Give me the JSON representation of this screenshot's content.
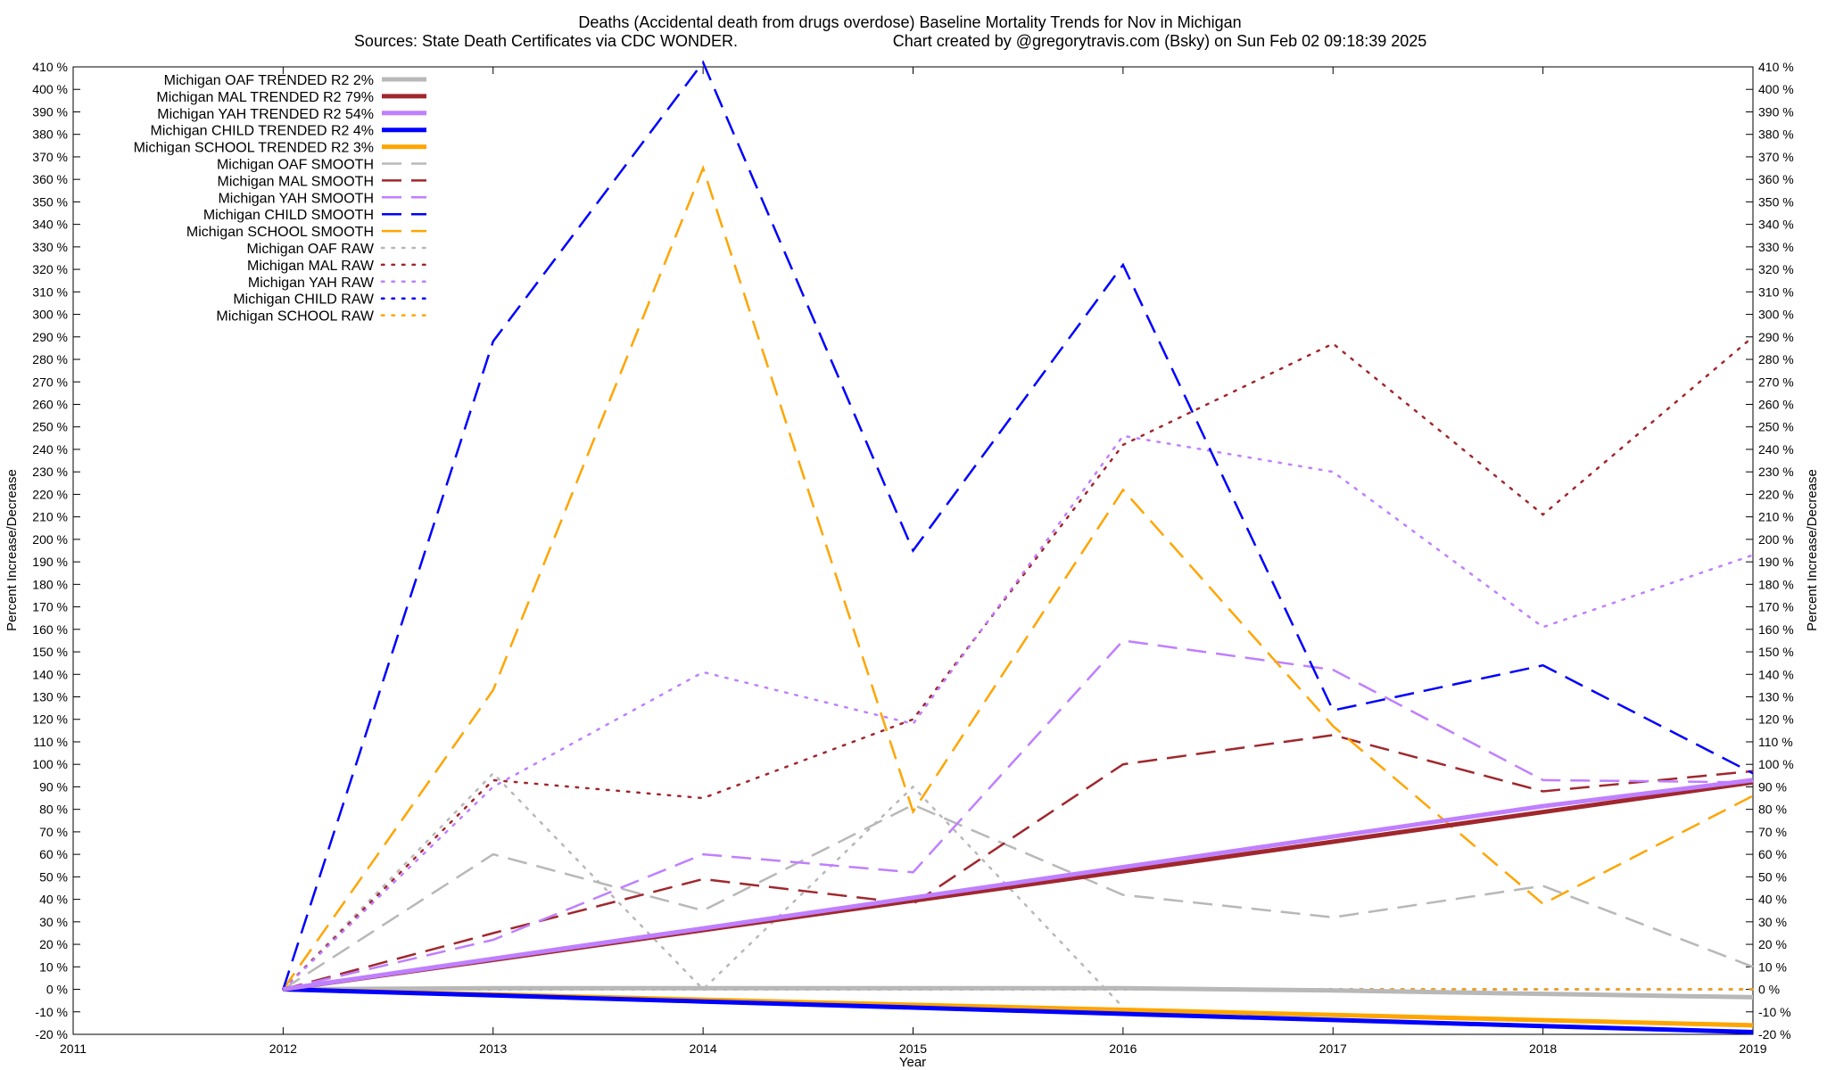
{
  "chart_data": {
    "type": "line",
    "title": "Deaths (Accidental death from drugs overdose)  Baseline Mortality Trends for Nov in Michigan",
    "subtitle_left": "Sources: State Death Certificates via CDC WONDER.",
    "subtitle_right": "Chart created by @gregorytravis.com (Bsky) on Sun Feb 02 09:18:39 2025",
    "xlabel": "Year",
    "ylabel_left": "Percent Increase/Decrease",
    "ylabel_right": "Percent Increase/Decrease",
    "xlim": [
      2011,
      2019
    ],
    "ylim": [
      -20,
      410
    ],
    "x_ticks": [
      "2011",
      "2012",
      "2013",
      "2014",
      "2015",
      "2016",
      "2017",
      "2018",
      "2019"
    ],
    "y_ticks_left": [
      "-20 %",
      "-10 %",
      "0 %",
      "10 %",
      "20 %",
      "30 %",
      "40 %",
      "50 %",
      "60 %",
      "70 %",
      "80 %",
      "90 %",
      "100 %",
      "110 %",
      "120 %",
      "130 %",
      "140 %",
      "150 %",
      "160 %",
      "170 %",
      "180 %",
      "190 %",
      "200 %",
      "210 %",
      "220 %",
      "230 %",
      "240 %",
      "250 %",
      "260 %",
      "270 %",
      "280 %",
      "290 %",
      "300 %",
      "310 %",
      "320 %",
      "330 %",
      "340 %",
      "350 %",
      "360 %",
      "370 %",
      "380 %",
      "390 %",
      "400 %",
      "410 %"
    ],
    "y_ticks_right": [
      "-20 %",
      "-10 %",
      "0 %",
      "10 %",
      "20 %",
      "30 %",
      "40 %",
      "50 %",
      "60 %",
      "70 %",
      "80 %",
      "90 %",
      "100 %",
      "110 %",
      "120 %",
      "130 %",
      "140 %",
      "150 %",
      "160 %",
      "170 %",
      "180 %",
      "190 %",
      "200 %",
      "210 %",
      "220 %",
      "230 %",
      "240 %",
      "250 %",
      "260 %",
      "270 %",
      "280 %",
      "290 %",
      "300 %",
      "310 %",
      "320 %",
      "330 %",
      "340 %",
      "350 %",
      "360 %",
      "370 %",
      "380 %",
      "390 %",
      "400 %",
      "410 %"
    ],
    "grid": false,
    "legend_position": "top-left",
    "x": [
      2012,
      2013,
      2014,
      2015,
      2016,
      2017,
      2018,
      2019
    ],
    "series": [
      {
        "name": "Michigan OAF TRENDED R2  2%",
        "style": "solid",
        "color": "#b8b8b8",
        "values": [
          0,
          0.5,
          0.5,
          0.5,
          0.5,
          -0.5,
          -2,
          -3.5
        ]
      },
      {
        "name": "Michigan MAL TRENDED R2  79%",
        "style": "solid",
        "color": "#a0272d",
        "values": [
          0,
          13.1,
          26.3,
          39.4,
          52.5,
          65.6,
          78.8,
          92
        ]
      },
      {
        "name": "Michigan YAH TRENDED R2  54%",
        "style": "solid",
        "color": "#bf7fff",
        "values": [
          0,
          13.6,
          27.1,
          40.7,
          54.3,
          67.9,
          81.4,
          93
        ]
      },
      {
        "name": "Michigan CHILD TRENDED R2  4%",
        "style": "solid",
        "color": "#0000ff",
        "values": [
          0,
          -2.7,
          -5.4,
          -8.1,
          -10.9,
          -13.6,
          -16.3,
          -19
        ]
      },
      {
        "name": "Michigan SCHOOL TRENDED R2  3%",
        "style": "solid",
        "color": "#ffa500",
        "values": [
          0,
          -2.3,
          -4.6,
          -6.9,
          -9.1,
          -11.4,
          -13.7,
          -16
        ]
      },
      {
        "name": "Michigan OAF SMOOTH",
        "style": "dashed",
        "color": "#b8b8b8",
        "values": [
          0,
          60,
          35,
          82,
          42,
          32,
          46,
          10
        ]
      },
      {
        "name": "Michigan MAL SMOOTH",
        "style": "dashed",
        "color": "#a0272d",
        "values": [
          0,
          25,
          49,
          38,
          100,
          113,
          88,
          97
        ]
      },
      {
        "name": "Michigan YAH SMOOTH",
        "style": "dashed",
        "color": "#bf7fff",
        "values": [
          0,
          22,
          60,
          52,
          155,
          142,
          93,
          92
        ]
      },
      {
        "name": "Michigan CHILD SMOOTH",
        "style": "dashed",
        "color": "#0000ff",
        "values": [
          0,
          288,
          412,
          195,
          322,
          124,
          144,
          96
        ]
      },
      {
        "name": "Michigan SCHOOL SMOOTH",
        "style": "dashed",
        "color": "#ffa500",
        "values": [
          0,
          133,
          365,
          79,
          222,
          117,
          38,
          86
        ]
      },
      {
        "name": "Michigan OAF RAW",
        "style": "dotted",
        "color": "#b8b8b8",
        "values": [
          0,
          96,
          0,
          90,
          -8,
          null,
          null,
          null
        ]
      },
      {
        "name": "Michigan MAL RAW",
        "style": "dotted",
        "color": "#a0272d",
        "values": [
          0,
          93,
          85,
          120,
          242,
          287,
          211,
          290
        ]
      },
      {
        "name": "Michigan YAH RAW",
        "style": "dotted",
        "color": "#bf7fff",
        "values": [
          0,
          90,
          141,
          118,
          246,
          230,
          161,
          193
        ]
      },
      {
        "name": "Michigan CHILD RAW",
        "style": "dotted",
        "color": "#0000ff",
        "values": [
          0,
          0,
          0,
          0,
          0,
          0,
          0,
          0
        ]
      },
      {
        "name": "Michigan SCHOOL RAW",
        "style": "dotted",
        "color": "#ffa500",
        "values": [
          0,
          0,
          0,
          0,
          0,
          0,
          0,
          0
        ]
      }
    ]
  }
}
